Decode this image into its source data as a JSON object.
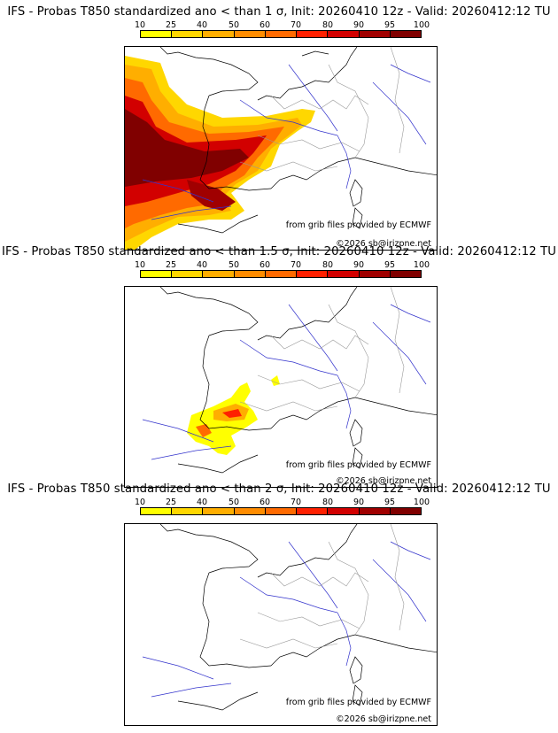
{
  "colors": {
    "scale": [
      "#ffff00",
      "#ffd700",
      "#ffae00",
      "#ff8c00",
      "#ff6a00",
      "#ff2000",
      "#d20000",
      "#a00000",
      "#800000",
      "#5a0000"
    ]
  },
  "scale_labels": [
    "10",
    "25",
    "40",
    "50",
    "60",
    "70",
    "80",
    "90",
    "95",
    "100"
  ],
  "panels": [
    {
      "title": "IFS - Probas T850  standardized ano < than 1 σ, Init: 20260410 12z - Valid: 20260412:12 TU",
      "threshold": "1 σ",
      "credit_source": "from grib files provided by ECMWF",
      "credit_copyright": "©2026 sb@irizpne.net"
    },
    {
      "title": "IFS - Probas T850  standardized ano < than 1.5 σ, Init: 20260410 12z - Valid: 20260412:12 TU",
      "threshold": "1.5 σ",
      "credit_source": "from grib files provided by ECMWF",
      "credit_copyright": "©2026 sb@irizpne.net"
    },
    {
      "title": "IFS - Probas T850  standardized ano < than 2 σ, Init: 20260410 12z - Valid: 20260412:12 TU",
      "threshold": "2 σ",
      "credit_source": "from grib files provided by ECMWF",
      "credit_copyright": "©2026 sb@irizpne.net"
    }
  ]
}
